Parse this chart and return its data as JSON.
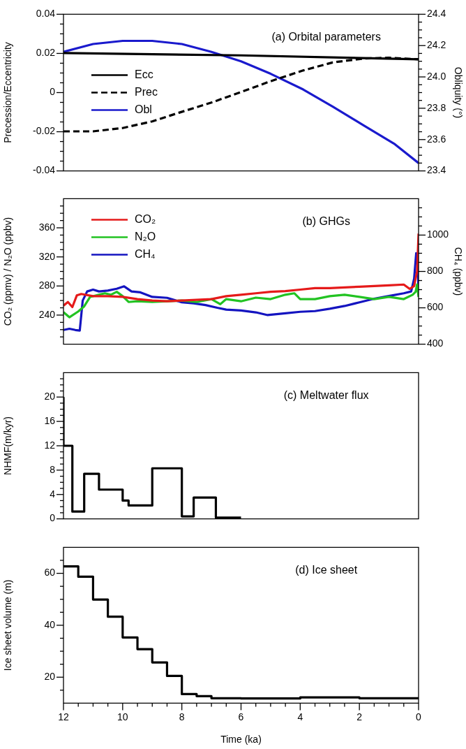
{
  "chart_data": [
    {
      "type": "line",
      "title": "(a) Orbital parameters",
      "ylabel": "Precession/Eccentricity",
      "y2label": "Obliquity (°)",
      "xlim": [
        12,
        0
      ],
      "ylim": [
        -0.04,
        0.04
      ],
      "y2lim": [
        23.4,
        24.4
      ],
      "tick_labels": "y",
      "legend": "left",
      "yticks": [
        -0.04,
        {
          "value": -0.035,
          "label": null
        },
        {
          "value": -0.03,
          "label": null
        },
        {
          "value": -0.025,
          "label": null
        },
        -0.02,
        {
          "value": -0.015,
          "label": null
        },
        {
          "value": -0.01,
          "label": null
        },
        {
          "value": -0.005,
          "label": null
        },
        0,
        {
          "value": 0.005,
          "label": null
        },
        {
          "value": 0.01,
          "label": null
        },
        {
          "value": 0.015,
          "label": null
        },
        0.02,
        {
          "value": 0.025,
          "label": null
        },
        {
          "value": 0.03,
          "label": null
        },
        {
          "value": 0.035,
          "label": null
        },
        0.04
      ],
      "y2ticks": [
        23.4,
        {
          "value": 23.45,
          "label": null
        },
        {
          "value": 23.5,
          "label": null
        },
        {
          "value": 23.55,
          "label": null
        },
        23.6,
        {
          "value": 23.65,
          "label": null
        },
        {
          "value": 23.7,
          "label": null
        },
        {
          "value": 23.75,
          "label": null
        },
        23.8,
        {
          "value": 23.85,
          "label": null
        },
        {
          "value": 23.9,
          "label": null
        },
        {
          "value": 23.95,
          "label": null
        },
        {
          "value": 24,
          "label": "24.0"
        },
        {
          "value": 24.05,
          "label": null
        },
        {
          "value": 24.1,
          "label": null
        },
        {
          "value": 24.15,
          "label": null
        },
        24.2,
        {
          "value": 24.25,
          "label": null
        },
        {
          "value": 24.3,
          "label": null
        },
        {
          "value": 24.35,
          "label": null
        },
        24.4
      ],
      "series": [
        {
          "name": "Ecc",
          "color": "#000000",
          "x": [
            12,
            6,
            0
          ],
          "values": [
            0.0202,
            0.019,
            0.017
          ]
        },
        {
          "name": "Prec",
          "color": "#000000",
          "line_style": "dashed",
          "x": [
            12,
            11,
            10,
            9,
            8.1,
            7,
            6,
            5,
            3.9,
            2.9,
            1.85,
            1,
            0
          ],
          "values": [
            -0.0198,
            -0.0198,
            -0.0181,
            -0.0147,
            -0.0103,
            -0.0051,
            0.0003,
            0.0058,
            0.0113,
            0.0154,
            0.0174,
            0.0178,
            0.017
          ]
        },
        {
          "name": "Obl",
          "color": "#1a1acd",
          "axis": "y2",
          "x": [
            12,
            11,
            10,
            9,
            8,
            7,
            6,
            5,
            3.9,
            2.9,
            1.85,
            0.8,
            0
          ],
          "values": [
            24.16,
            24.21,
            24.23,
            24.23,
            24.21,
            24.16,
            24.1,
            24.02,
            23.92,
            23.81,
            23.69,
            23.57,
            23.45
          ]
        }
      ]
    },
    {
      "type": "line",
      "title": "(b) GHGs",
      "ylabel": "CO₂ (ppmv) / N₂O (ppbv)",
      "y2label": "CH₄ (ppbv)",
      "xlim": [
        12,
        0
      ],
      "ylim": [
        200,
        400
      ],
      "y2lim": [
        400,
        1200
      ],
      "tick_labels": "y",
      "legend": "top left",
      "yticks": [
        {
          "value": 210,
          "label": null
        },
        {
          "value": 220,
          "label": null
        },
        {
          "value": 230,
          "label": null
        },
        240,
        {
          "value": 250,
          "label": null
        },
        {
          "value": 260,
          "label": null
        },
        {
          "value": 270,
          "label": null
        },
        280,
        {
          "value": 290,
          "label": null
        },
        {
          "value": 300,
          "label": null
        },
        {
          "value": 310,
          "label": null
        },
        320,
        {
          "value": 330,
          "label": null
        },
        {
          "value": 340,
          "label": null
        },
        {
          "value": 350,
          "label": null
        },
        360,
        {
          "value": 370,
          "label": null
        },
        {
          "value": 380,
          "label": null
        },
        {
          "value": 390,
          "label": null
        }
      ],
      "y2ticks": [
        400,
        {
          "value": 450,
          "label": null
        },
        {
          "value": 500,
          "label": null
        },
        {
          "value": 550,
          "label": null
        },
        600,
        {
          "value": 650,
          "label": null
        },
        {
          "value": 700,
          "label": null
        },
        {
          "value": 750,
          "label": null
        },
        800,
        {
          "value": 850,
          "label": null
        },
        {
          "value": 900,
          "label": null
        },
        {
          "value": 950,
          "label": null
        },
        1000,
        {
          "value": 1050,
          "label": null
        },
        {
          "value": 1100,
          "label": null
        },
        {
          "value": 1150,
          "label": null
        }
      ],
      "series": [
        {
          "name": "CO₂",
          "color": "#e51a1a",
          "x": [
            12,
            11.85,
            11.7,
            11.55,
            11.4,
            11,
            10.5,
            10,
            9.5,
            9,
            8.5,
            8,
            7.5,
            7,
            6.5,
            6,
            5.5,
            5,
            4.5,
            4,
            3.5,
            3,
            2.5,
            2,
            1.5,
            1,
            0.5,
            0.3,
            0.15,
            0.05,
            0
          ],
          "values": [
            253,
            258,
            251,
            267,
            269,
            266,
            266,
            265,
            262,
            260,
            259,
            260,
            261,
            262,
            266,
            268,
            270,
            272,
            273,
            275,
            277,
            277,
            278,
            279,
            280,
            281,
            282,
            276,
            280,
            300,
            352
          ]
        },
        {
          "name": "N₂O",
          "color": "#22c322",
          "x": [
            12,
            11.8,
            11.5,
            11.3,
            11.1,
            10.8,
            10.6,
            10.4,
            10.2,
            10,
            9.8,
            9.5,
            9,
            8.5,
            8,
            7.5,
            7,
            6.7,
            6.5,
            6,
            5.5,
            5,
            4.5,
            4.2,
            4,
            3.5,
            3,
            2.5,
            2,
            1.5,
            1,
            0.5,
            0.2,
            0.1,
            0.05,
            0
          ],
          "values": [
            244,
            237,
            245,
            252,
            265,
            268,
            270,
            268,
            272,
            266,
            258,
            259,
            258,
            259,
            260,
            258,
            262,
            255,
            262,
            259,
            264,
            262,
            268,
            270,
            262,
            262,
            266,
            268,
            265,
            262,
            265,
            262,
            268,
            272,
            282,
            265
          ]
        },
        {
          "name": "CH₄",
          "color": "#1414c0",
          "axis": "y2",
          "x": [
            12,
            11.8,
            11.6,
            11.45,
            11.35,
            11.2,
            11,
            10.8,
            10.5,
            10.2,
            9.95,
            9.7,
            9.4,
            9,
            8.5,
            8.2,
            8,
            7.6,
            7.2,
            6.8,
            6.5,
            6,
            5.5,
            5.1,
            4.5,
            4,
            3.5,
            3,
            2.5,
            2,
            1.5,
            1,
            0.5,
            0.25,
            0.15,
            0.08,
            0.03,
            0
          ],
          "values": [
            478,
            485,
            478,
            475,
            640,
            690,
            700,
            690,
            695,
            705,
            718,
            690,
            685,
            660,
            655,
            640,
            630,
            625,
            615,
            600,
            590,
            585,
            575,
            560,
            570,
            578,
            582,
            595,
            610,
            630,
            650,
            665,
            680,
            690,
            760,
            900,
            880,
            680
          ]
        }
      ]
    },
    {
      "type": "step",
      "title": "(c) Meltwater flux",
      "ylabel": "NHMF(m/kyr)",
      "xlim": [
        12,
        0
      ],
      "ylim": [
        0,
        24
      ],
      "tick_labels": "y",
      "yticks": [
        0,
        {
          "value": 1,
          "label": null
        },
        {
          "value": 2,
          "label": null
        },
        {
          "value": 3,
          "label": null
        },
        4,
        {
          "value": 5,
          "label": null
        },
        {
          "value": 6,
          "label": null
        },
        {
          "value": 7,
          "label": null
        },
        8,
        {
          "value": 9,
          "label": null
        },
        {
          "value": 10,
          "label": null
        },
        {
          "value": 11,
          "label": null
        },
        12,
        {
          "value": 13,
          "label": null
        },
        {
          "value": 14,
          "label": null
        },
        {
          "value": 15,
          "label": null
        },
        16,
        {
          "value": 17,
          "label": null
        },
        {
          "value": 18,
          "label": null
        },
        {
          "value": 19,
          "label": null
        },
        20,
        {
          "value": 21,
          "label": null
        },
        {
          "value": 22,
          "label": null
        },
        {
          "value": 23,
          "label": null
        }
      ],
      "series": [
        {
          "color": "#000000",
          "x": [
            12,
            12,
            11.7,
            11.3,
            10.8,
            10,
            9.8,
            9,
            8,
            7.6,
            6.85,
            6
          ],
          "values": [
            20,
            12,
            1.2,
            7.4,
            4.8,
            3,
            2.2,
            8.3,
            0.4,
            3.5,
            0.2,
            0.2
          ]
        }
      ]
    },
    {
      "type": "step",
      "title": "(d) Ice sheet",
      "ylabel": "Ice sheet volume (m)",
      "xlabel": "Time (ka)",
      "xlim": [
        12,
        0
      ],
      "ylim": [
        10,
        70
      ],
      "xticks": [
        0,
        {
          "value": 0.5,
          "label": null
        },
        {
          "value": 1,
          "label": null
        },
        {
          "value": 1.5,
          "label": null
        },
        2,
        {
          "value": 2.5,
          "label": null
        },
        {
          "value": 3,
          "label": null
        },
        {
          "value": 3.5,
          "label": null
        },
        4,
        {
          "value": 4.5,
          "label": null
        },
        {
          "value": 5,
          "label": null
        },
        {
          "value": 5.5,
          "label": null
        },
        6,
        {
          "value": 6.5,
          "label": null
        },
        {
          "value": 7,
          "label": null
        },
        {
          "value": 7.5,
          "label": null
        },
        8,
        {
          "value": 8.5,
          "label": null
        },
        {
          "value": 9,
          "label": null
        },
        {
          "value": 9.5,
          "label": null
        },
        10,
        {
          "value": 10.5,
          "label": null
        },
        {
          "value": 11,
          "label": null
        },
        {
          "value": 11.5,
          "label": null
        },
        12
      ],
      "yticks": [
        {
          "value": 15,
          "label": null
        },
        20,
        {
          "value": 25,
          "label": null
        },
        {
          "value": 30,
          "label": null
        },
        {
          "value": 35,
          "label": null
        },
        40,
        {
          "value": 45,
          "label": null
        },
        {
          "value": 50,
          "label": null
        },
        {
          "value": 55,
          "label": null
        },
        60,
        {
          "value": 65,
          "label": null
        }
      ],
      "series": [
        {
          "color": "#000000",
          "x": [
            12,
            11.5,
            11,
            10.5,
            10,
            9.5,
            9,
            8.5,
            8,
            7.5,
            7,
            6,
            4,
            2,
            0
          ],
          "values": [
            62.7,
            58.7,
            49.9,
            43.3,
            35.3,
            30.8,
            25.7,
            20.5,
            13.5,
            12.7,
            11.9,
            11.8,
            12.2,
            11.9,
            12
          ]
        }
      ]
    }
  ]
}
